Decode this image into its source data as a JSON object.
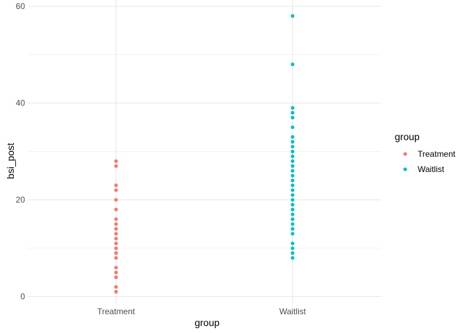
{
  "chart_data": {
    "type": "scatter",
    "title": "",
    "xlabel": "group",
    "ylabel": "bsi_post",
    "categories": [
      "Treatment",
      "Waitlist"
    ],
    "ylim": [
      -1.5,
      61.3
    ],
    "yticks": [
      0,
      20,
      40,
      60
    ],
    "ytick_labels": [
      "0",
      "20",
      "40",
      "60"
    ],
    "grid": true,
    "legend": {
      "title": "group",
      "position": "right",
      "entries": [
        "Treatment",
        "Waitlist"
      ]
    },
    "series": [
      {
        "name": "Treatment",
        "color": "#F8766D",
        "category": "Treatment",
        "values": [
          28,
          27,
          23,
          22,
          20,
          18,
          16,
          15,
          14,
          13,
          12,
          11,
          10,
          9,
          8,
          6,
          5,
          4,
          2,
          1
        ]
      },
      {
        "name": "Waitlist",
        "color": "#00BFC4",
        "category": "Waitlist",
        "values": [
          58,
          48,
          39,
          38,
          37,
          35,
          33,
          32,
          31,
          30,
          29,
          28,
          27,
          26,
          25,
          24,
          23,
          22,
          21,
          20,
          19,
          18,
          17,
          16,
          15,
          14,
          13,
          11,
          10,
          9,
          8
        ]
      }
    ]
  }
}
